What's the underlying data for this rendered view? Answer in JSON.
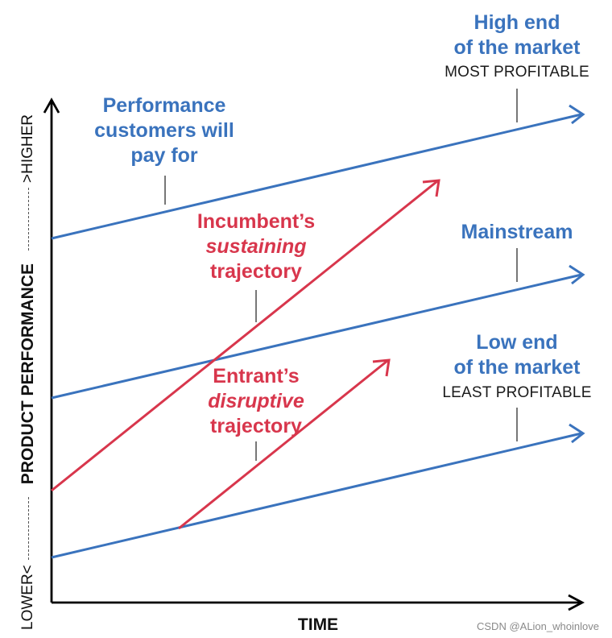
{
  "axes": {
    "x_label": "TIME",
    "y_label": "PRODUCT PERFORMANCE",
    "y_low": "LOWER",
    "y_high": "HIGHER"
  },
  "labels": {
    "performance": [
      "Performance",
      "customers will",
      "pay for"
    ],
    "high_end": [
      "High end",
      "of the market"
    ],
    "most_profitable": "MOST PROFITABLE",
    "mainstream": "Mainstream",
    "low_end": [
      "Low end",
      "of the market"
    ],
    "least_profitable": "LEAST PROFITABLE",
    "incumbent": [
      "Incumbent’s",
      "sustaining",
      "trajectory"
    ],
    "entrant": [
      "Entrant’s",
      "disruptive",
      "trajectory"
    ]
  },
  "colors": {
    "market_lines": "#3a73bd",
    "trajectories": "#d8364c",
    "axes": "#000000",
    "leader_lines": "#777777"
  },
  "watermark": "CSDN @ALion_whoinlove"
}
